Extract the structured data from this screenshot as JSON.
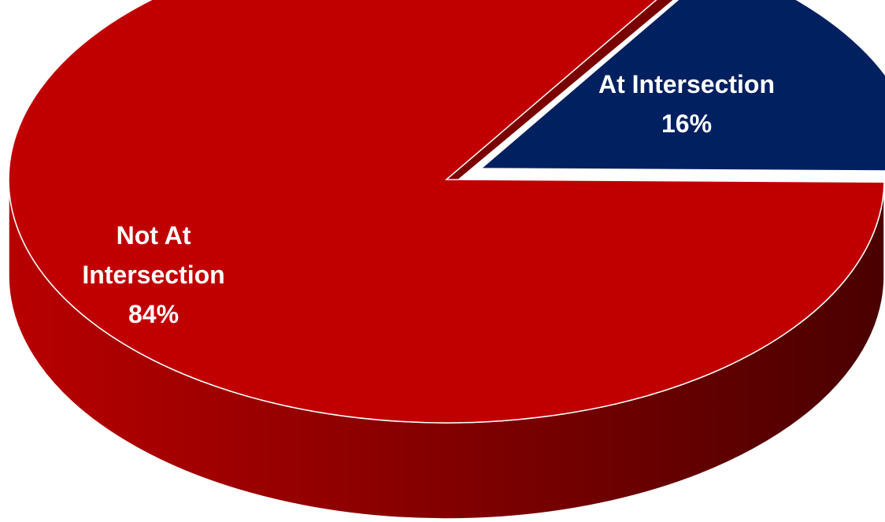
{
  "chart_data": {
    "type": "pie",
    "style": "3d-exploded",
    "title": "",
    "slices": [
      {
        "label_lines": [
          "At Intersection"
        ],
        "percent_label": "16%",
        "value": 16,
        "color": "#002060",
        "dark_color": "#000c26"
      },
      {
        "label_lines": [
          "Not At",
          "Intersection"
        ],
        "percent_label": "84%",
        "value": 84,
        "color": "#c00000",
        "dark_color": "#4d0000"
      }
    ],
    "start_angle_deg": -57,
    "legend": "none",
    "data_labels": "inside"
  }
}
